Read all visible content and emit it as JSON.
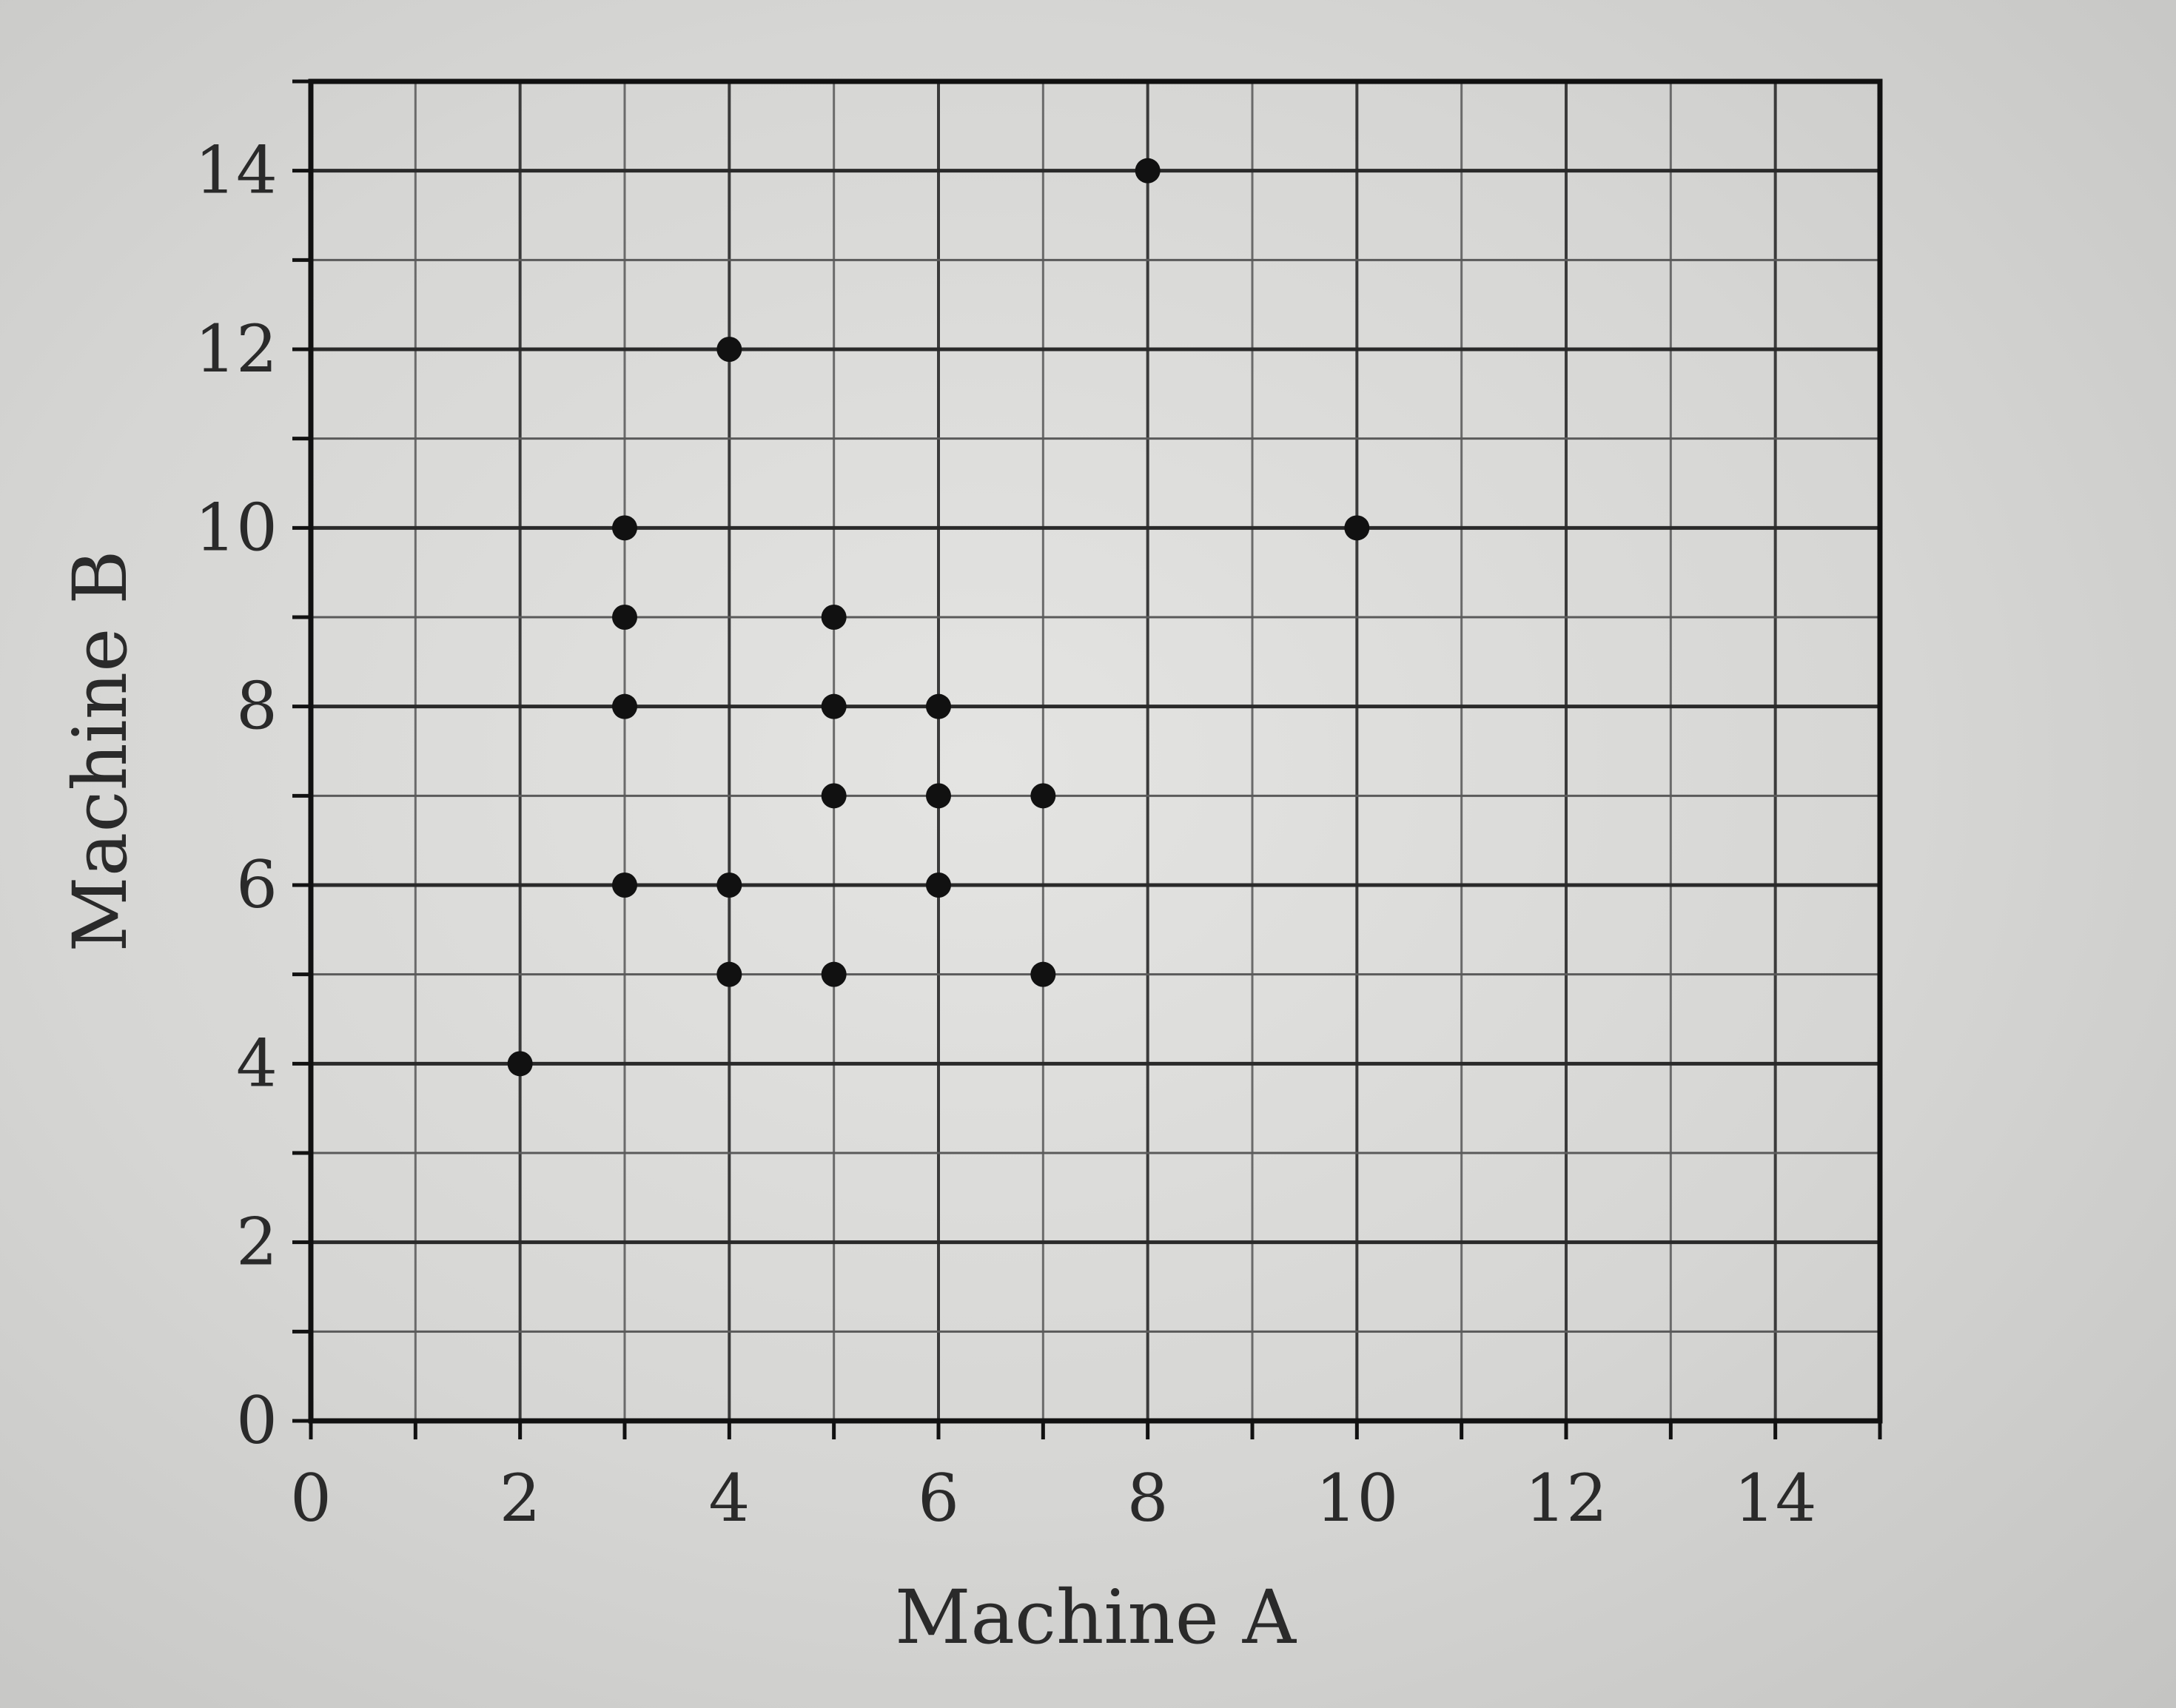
{
  "chart_data": {
    "type": "scatter",
    "title": "",
    "xlabel": "Machine A",
    "ylabel": "Machine B",
    "xlim": [
      0,
      15
    ],
    "ylim": [
      0,
      15
    ],
    "x_ticks": [
      "0",
      "2",
      "4",
      "6",
      "8",
      "10",
      "12",
      "14"
    ],
    "y_ticks": [
      "0",
      "2",
      "4",
      "6",
      "8",
      "10",
      "12",
      "14"
    ],
    "grid": true,
    "points": [
      {
        "x": 2,
        "y": 4
      },
      {
        "x": 3,
        "y": 10
      },
      {
        "x": 3,
        "y": 9
      },
      {
        "x": 3,
        "y": 8
      },
      {
        "x": 3,
        "y": 6
      },
      {
        "x": 4,
        "y": 12
      },
      {
        "x": 4,
        "y": 6
      },
      {
        "x": 4,
        "y": 5
      },
      {
        "x": 5,
        "y": 9
      },
      {
        "x": 5,
        "y": 8
      },
      {
        "x": 5,
        "y": 7
      },
      {
        "x": 5,
        "y": 5
      },
      {
        "x": 6,
        "y": 8
      },
      {
        "x": 6,
        "y": 7
      },
      {
        "x": 6,
        "y": 6
      },
      {
        "x": 7,
        "y": 7
      },
      {
        "x": 7,
        "y": 5
      },
      {
        "x": 8,
        "y": 14
      },
      {
        "x": 10,
        "y": 10
      }
    ]
  }
}
